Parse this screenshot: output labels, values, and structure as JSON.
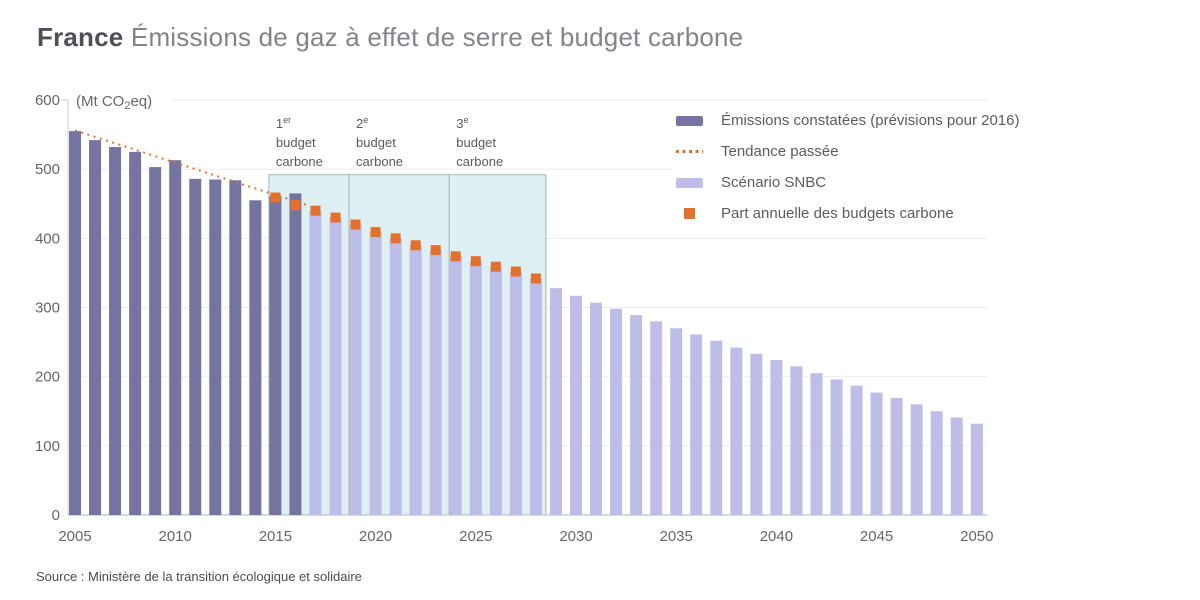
{
  "title": {
    "prefix": "France",
    "text": "Émissions de gaz à effet de serre et budget carbone"
  },
  "source": "Source : Ministère de la transition écologique et solidaire",
  "colors": {
    "observed_bar": "#7574a1",
    "snbc_bar": "#bdbde7",
    "orange": "#e2712d",
    "region_fill": "#dff0f4",
    "region_border": "#a6b4b6",
    "gridline": "#ebebeb",
    "y_axis": "#cccccc",
    "x_axis": "#c9c9dc",
    "axis_text": "#666666",
    "region_label_text": "#5a5a5a"
  },
  "legend": [
    {
      "label": "Émissions constatées (prévisions pour 2016)",
      "swatch": "rect-dark"
    },
    {
      "label": "Tendance passée",
      "swatch": "dotted-orange"
    },
    {
      "label": "Scénario SNBC",
      "swatch": "rect-light"
    },
    {
      "label": "Part annuelle des budgets carbone",
      "swatch": "square-orange"
    }
  ],
  "chart_data": {
    "type": "bar",
    "title": "France — Émissions de gaz à effet de serre et budget carbone",
    "unit": {
      "pre": "(Mt CO",
      "sub": "2",
      "post": "eq)"
    },
    "ylim": [
      0,
      600
    ],
    "ytick_step": 100,
    "xticks": [
      2005,
      2010,
      2015,
      2020,
      2025,
      2030,
      2035,
      2040,
      2045,
      2050
    ],
    "x_range": [
      2005,
      2050
    ],
    "grid": true,
    "legend_position": "top-right",
    "series": [
      {
        "name": "Émissions constatées (prévisions pour 2016)",
        "color_key": "observed_bar",
        "start_year": 2005,
        "values": [
          555,
          542,
          532,
          525,
          503,
          513,
          486,
          485,
          484,
          455,
          461,
          465
        ]
      },
      {
        "name": "Scénario SNBC",
        "color_key": "snbc_bar",
        "start_year": 2017,
        "values": [
          440,
          430,
          420,
          409,
          400,
          390,
          383,
          374,
          367,
          359,
          352,
          342,
          328,
          317,
          307,
          298,
          289,
          280,
          270,
          261,
          252,
          242,
          233,
          224,
          215,
          205,
          196,
          187,
          177,
          169,
          160,
          150,
          141,
          132
        ]
      }
    ],
    "markers": {
      "name": "Part annuelle des budgets carbone",
      "color_key": "orange",
      "start_year": 2015,
      "values": [
        459,
        448,
        440,
        430,
        420,
        409,
        400,
        390,
        383,
        374,
        367,
        359,
        352,
        342
      ]
    },
    "trend": {
      "name": "Tendance passée",
      "color_key": "orange",
      "from": {
        "year": 2005,
        "value": 556
      },
      "to": {
        "year": 2016.7,
        "value": 447
      }
    },
    "budget_regions": [
      {
        "ordinal": "1",
        "sup": "er",
        "line2": "budget",
        "line3": "carbone",
        "from_year": 2015,
        "to_year": 2018
      },
      {
        "ordinal": "2",
        "sup": "e",
        "line2": "budget",
        "line3": "carbone",
        "from_year": 2019,
        "to_year": 2023
      },
      {
        "ordinal": "3",
        "sup": "e",
        "line2": "budget",
        "line3": "carbone",
        "from_year": 2024,
        "to_year": 2028
      }
    ],
    "region_top_value": 492
  }
}
